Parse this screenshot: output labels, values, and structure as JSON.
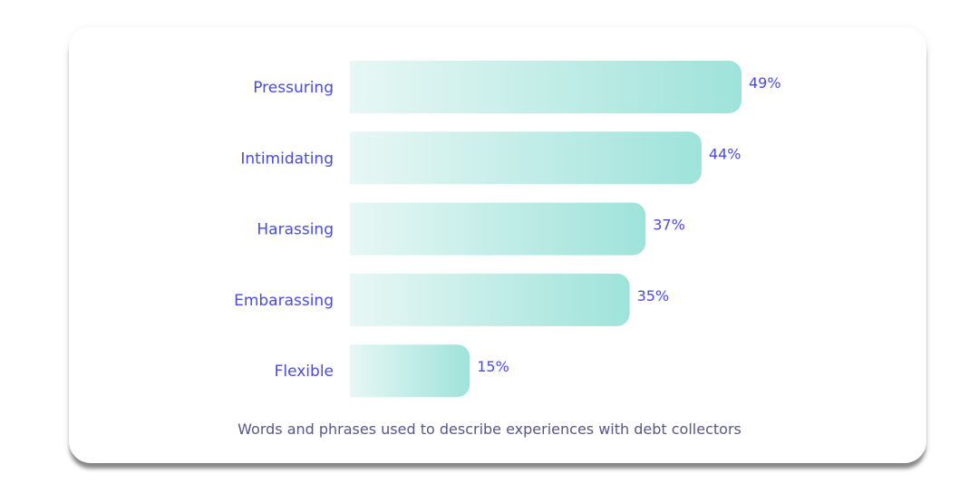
{
  "chart_data": {
    "type": "bar",
    "orientation": "horizontal",
    "categories": [
      "Pressuring",
      "Intimidating",
      "Harassing",
      "Embarassing",
      "Flexible"
    ],
    "values": [
      49,
      44,
      37,
      35,
      15
    ],
    "value_labels": [
      "49%",
      "44%",
      "37%",
      "35%",
      "15%"
    ],
    "caption": "Words and phrases used to describe experiences with debt collectors",
    "xlim": [
      0,
      49
    ],
    "grid": false,
    "colors": {
      "bar_start": "#e8f7f5",
      "bar_end": "#9ee3da",
      "label": "#4a4ae0",
      "caption": "#55568a"
    }
  }
}
